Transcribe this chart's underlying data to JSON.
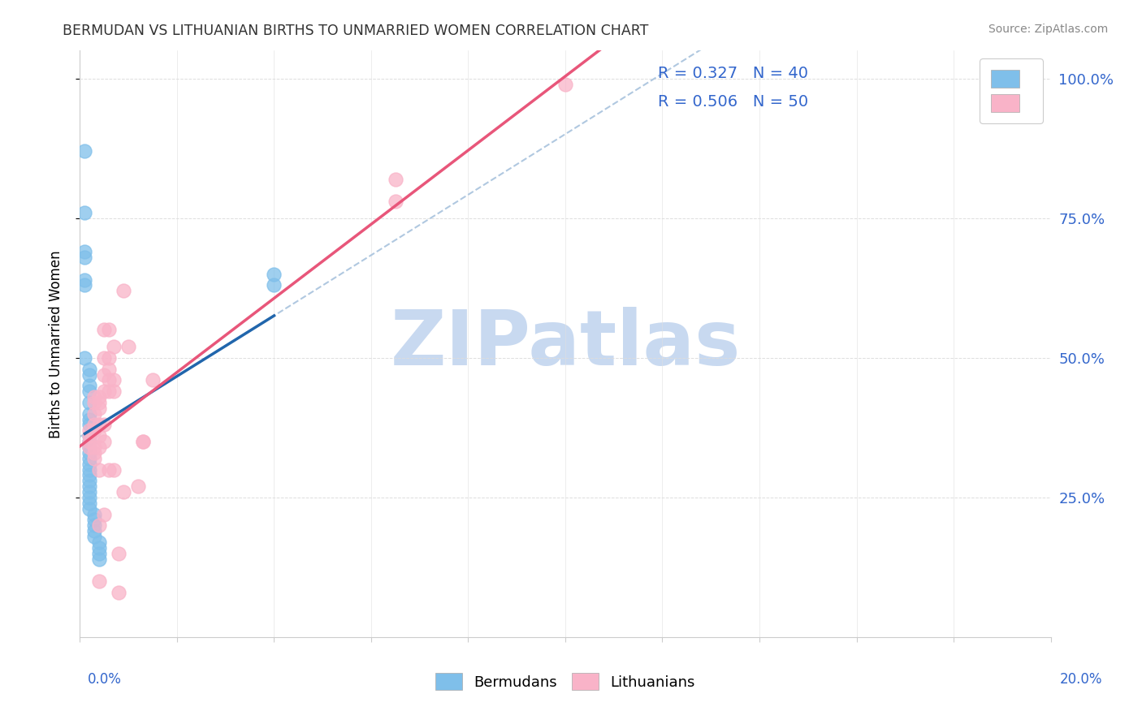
{
  "title": "BERMUDAN VS LITHUANIAN BIRTHS TO UNMARRIED WOMEN CORRELATION CHART",
  "source": "Source: ZipAtlas.com",
  "ylabel": "Births to Unmarried Women",
  "legend_blue_R": "R = 0.327",
  "legend_blue_N": "N = 40",
  "legend_pink_R": "R = 0.506",
  "legend_pink_N": "N = 50",
  "blue_scatter_color": "#7fbfea",
  "pink_scatter_color": "#f9b3c8",
  "blue_line_color": "#2166ac",
  "pink_line_color": "#e8567a",
  "dash_color": "#b0c8e0",
  "watermark": "ZIPatlas",
  "watermark_color": "#c8d9f0",
  "blue_scatter": [
    [
      0.001,
      0.87
    ],
    [
      0.001,
      0.76
    ],
    [
      0.001,
      0.69
    ],
    [
      0.001,
      0.68
    ],
    [
      0.001,
      0.64
    ],
    [
      0.001,
      0.63
    ],
    [
      0.001,
      0.5
    ],
    [
      0.002,
      0.48
    ],
    [
      0.002,
      0.47
    ],
    [
      0.002,
      0.45
    ],
    [
      0.002,
      0.44
    ],
    [
      0.002,
      0.42
    ],
    [
      0.002,
      0.4
    ],
    [
      0.002,
      0.39
    ],
    [
      0.002,
      0.38
    ],
    [
      0.002,
      0.36
    ],
    [
      0.002,
      0.35
    ],
    [
      0.002,
      0.34
    ],
    [
      0.002,
      0.33
    ],
    [
      0.002,
      0.32
    ],
    [
      0.002,
      0.31
    ],
    [
      0.002,
      0.3
    ],
    [
      0.002,
      0.29
    ],
    [
      0.002,
      0.28
    ],
    [
      0.002,
      0.27
    ],
    [
      0.002,
      0.26
    ],
    [
      0.002,
      0.25
    ],
    [
      0.002,
      0.24
    ],
    [
      0.002,
      0.23
    ],
    [
      0.003,
      0.22
    ],
    [
      0.003,
      0.21
    ],
    [
      0.003,
      0.2
    ],
    [
      0.003,
      0.19
    ],
    [
      0.003,
      0.18
    ],
    [
      0.004,
      0.17
    ],
    [
      0.004,
      0.16
    ],
    [
      0.004,
      0.15
    ],
    [
      0.004,
      0.14
    ],
    [
      0.04,
      0.63
    ],
    [
      0.04,
      0.65
    ]
  ],
  "pink_scatter": [
    [
      0.002,
      0.37
    ],
    [
      0.002,
      0.36
    ],
    [
      0.002,
      0.35
    ],
    [
      0.002,
      0.34
    ],
    [
      0.003,
      0.43
    ],
    [
      0.003,
      0.42
    ],
    [
      0.003,
      0.4
    ],
    [
      0.003,
      0.38
    ],
    [
      0.003,
      0.37
    ],
    [
      0.003,
      0.34
    ],
    [
      0.003,
      0.33
    ],
    [
      0.003,
      0.32
    ],
    [
      0.004,
      0.43
    ],
    [
      0.004,
      0.42
    ],
    [
      0.004,
      0.41
    ],
    [
      0.004,
      0.38
    ],
    [
      0.004,
      0.36
    ],
    [
      0.004,
      0.34
    ],
    [
      0.004,
      0.3
    ],
    [
      0.004,
      0.2
    ],
    [
      0.004,
      0.1
    ],
    [
      0.005,
      0.55
    ],
    [
      0.005,
      0.5
    ],
    [
      0.005,
      0.47
    ],
    [
      0.005,
      0.44
    ],
    [
      0.005,
      0.38
    ],
    [
      0.005,
      0.35
    ],
    [
      0.005,
      0.22
    ],
    [
      0.006,
      0.55
    ],
    [
      0.006,
      0.5
    ],
    [
      0.006,
      0.48
    ],
    [
      0.006,
      0.46
    ],
    [
      0.006,
      0.44
    ],
    [
      0.006,
      0.3
    ],
    [
      0.007,
      0.52
    ],
    [
      0.007,
      0.46
    ],
    [
      0.007,
      0.44
    ],
    [
      0.007,
      0.3
    ],
    [
      0.008,
      0.08
    ],
    [
      0.008,
      0.15
    ],
    [
      0.009,
      0.62
    ],
    [
      0.009,
      0.26
    ],
    [
      0.01,
      0.52
    ],
    [
      0.012,
      0.27
    ],
    [
      0.013,
      0.35
    ],
    [
      0.013,
      0.35
    ],
    [
      0.015,
      0.46
    ],
    [
      0.1,
      0.99
    ],
    [
      0.065,
      0.82
    ],
    [
      0.065,
      0.78
    ]
  ],
  "xmin": 0.0,
  "xmax": 0.2,
  "ymin": 0.0,
  "ymax": 1.05
}
